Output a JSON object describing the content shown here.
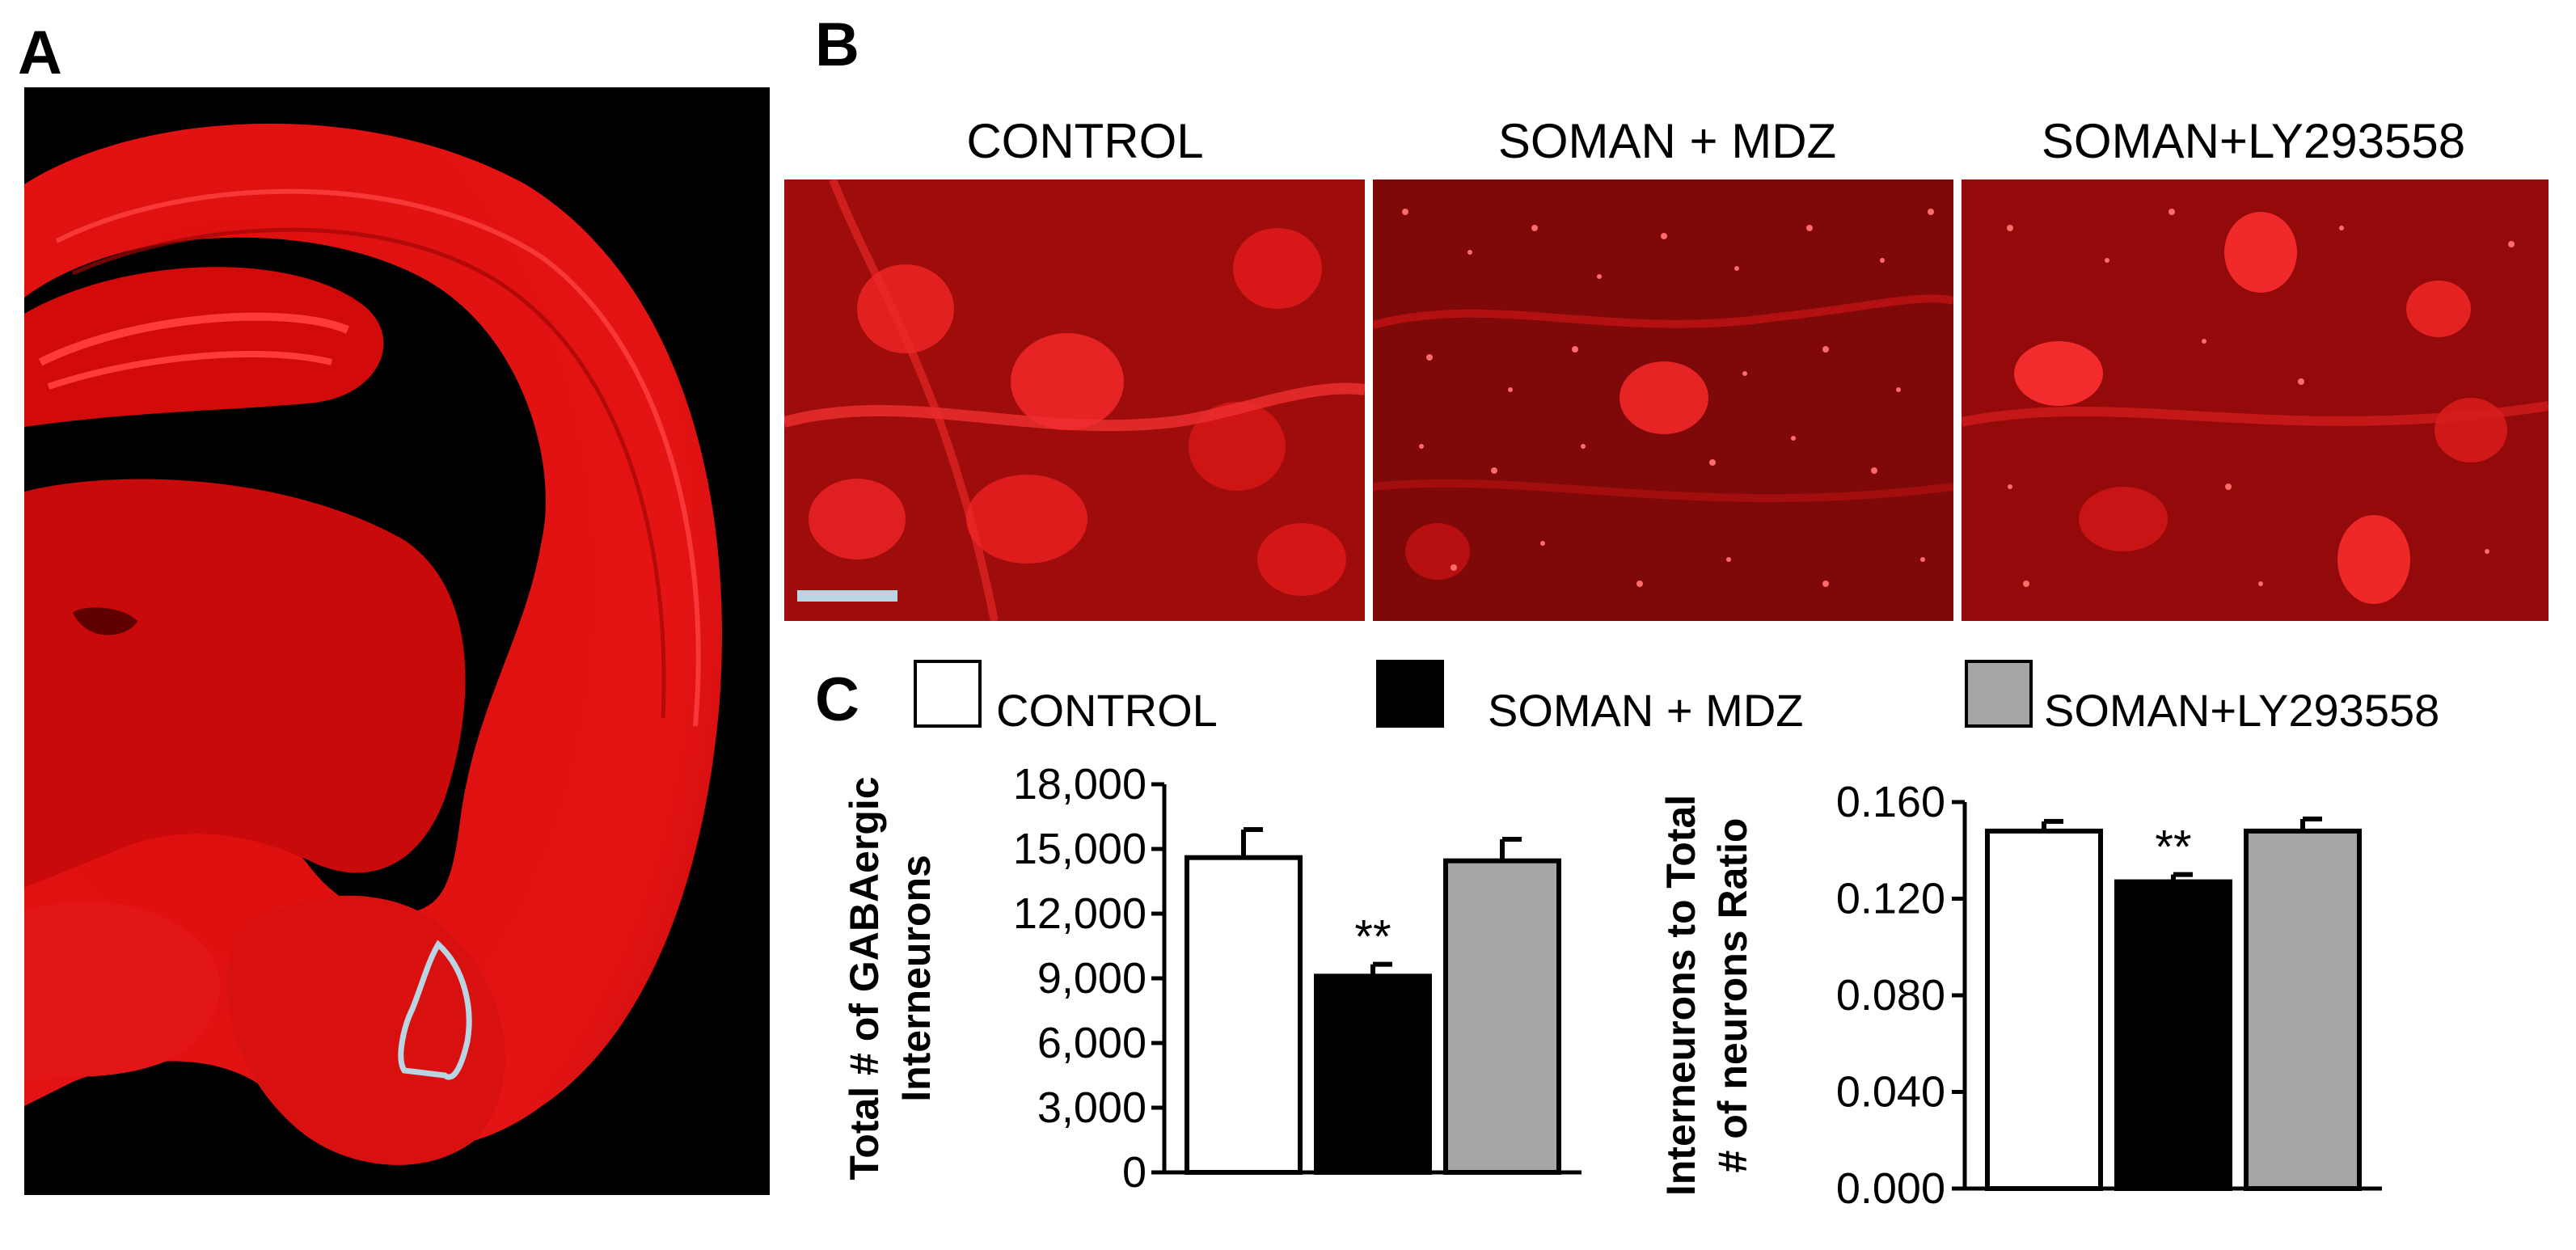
{
  "panels": {
    "a": {
      "letter": "A"
    },
    "b": {
      "letter": "B",
      "titles": [
        "CONTROL",
        "SOMAN + MDZ",
        "SOMAN+LY293558"
      ]
    },
    "c": {
      "letter": "C"
    }
  },
  "legend": [
    {
      "label": "CONTROL",
      "color": "#ffffff"
    },
    {
      "label": "SOMAN + MDZ",
      "color": "#000000"
    },
    {
      "label": "SOMAN+LY293558",
      "color": "#a6a6a6"
    }
  ],
  "colors": {
    "stain": "#e01010",
    "roi_outline": "#b9d4e2"
  },
  "chart_data": [
    {
      "type": "bar",
      "ylabel_lines": [
        "Total # of GABAergic",
        "Interneurons"
      ],
      "ylim": [
        0,
        18000
      ],
      "ytick_labels": [
        "0",
        "3,000",
        "6,000",
        "9,000",
        "12,000",
        "15,000",
        "18,000"
      ],
      "ytick_values": [
        0,
        3000,
        6000,
        9000,
        12000,
        15000,
        18000
      ],
      "series": [
        {
          "group": "CONTROL",
          "value": 14600,
          "error": 1300,
          "color": "#ffffff",
          "annotation": ""
        },
        {
          "group": "SOMAN + MDZ",
          "value": 9100,
          "error": 550,
          "color": "#000000",
          "annotation": "**"
        },
        {
          "group": "SOMAN+LY293558",
          "value": 14450,
          "error": 1000,
          "color": "#a6a6a6",
          "annotation": ""
        }
      ]
    },
    {
      "type": "bar",
      "ylabel_lines": [
        "Interneurons to Total",
        "# of neurons Ratio"
      ],
      "ylim": [
        0,
        0.16
      ],
      "ytick_labels": [
        "0.000",
        "0.040",
        "0.080",
        "0.120",
        "0.160"
      ],
      "ytick_values": [
        0,
        0.04,
        0.08,
        0.12,
        0.16
      ],
      "series": [
        {
          "group": "CONTROL",
          "value": 0.148,
          "error": 0.004,
          "color": "#ffffff",
          "annotation": ""
        },
        {
          "group": "SOMAN + MDZ",
          "value": 0.127,
          "error": 0.003,
          "color": "#000000",
          "annotation": "**"
        },
        {
          "group": "SOMAN+LY293558",
          "value": 0.148,
          "error": 0.005,
          "color": "#a6a6a6",
          "annotation": ""
        }
      ]
    }
  ]
}
